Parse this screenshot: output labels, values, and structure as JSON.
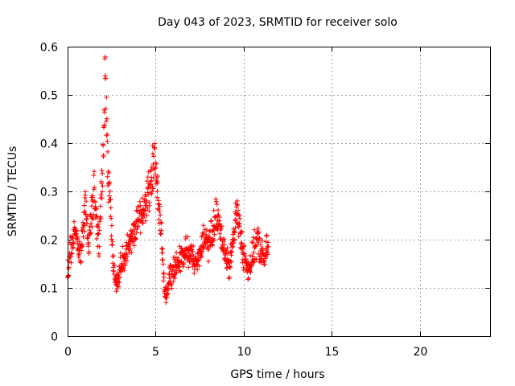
{
  "chart_data": {
    "type": "scatter",
    "title": "Day 043 of 2023, SRMTID for receiver solo",
    "xlabel": "GPS time / hours",
    "ylabel": "SRMTID / TECUs",
    "xlim": [
      0,
      24
    ],
    "ylim": [
      0,
      0.6
    ],
    "x_ticks": [
      0,
      5,
      10,
      15,
      20
    ],
    "x_tick_labels": [
      "0",
      "5",
      "10",
      "15",
      "20"
    ],
    "y_ticks": [
      0,
      0.1,
      0.2,
      0.3,
      0.4,
      0.5,
      0.6
    ],
    "y_tick_labels": [
      "0",
      "0.1",
      "0.2",
      "0.3",
      "0.4",
      "0.5",
      "0.6"
    ],
    "grid": true,
    "marker": "plus",
    "series": [
      {
        "name": "SRMTID",
        "color": "#ff0000",
        "trend": [
          [
            0.0,
            0.13
          ],
          [
            0.1,
            0.16
          ],
          [
            0.2,
            0.18
          ],
          [
            0.35,
            0.2
          ],
          [
            0.5,
            0.21
          ],
          [
            0.6,
            0.19
          ],
          [
            0.75,
            0.17
          ],
          [
            0.9,
            0.23
          ],
          [
            1.0,
            0.28
          ],
          [
            1.1,
            0.22
          ],
          [
            1.2,
            0.18
          ],
          [
            1.3,
            0.22
          ],
          [
            1.4,
            0.27
          ],
          [
            1.5,
            0.31
          ],
          [
            1.6,
            0.25
          ],
          [
            1.7,
            0.22
          ],
          [
            1.8,
            0.2
          ],
          [
            1.9,
            0.28
          ],
          [
            2.0,
            0.37
          ],
          [
            2.1,
            0.48
          ],
          [
            2.15,
            0.55
          ],
          [
            2.2,
            0.47
          ],
          [
            2.3,
            0.35
          ],
          [
            2.4,
            0.28
          ],
          [
            2.5,
            0.22
          ],
          [
            2.6,
            0.15
          ],
          [
            2.7,
            0.13
          ],
          [
            2.8,
            0.11
          ],
          [
            2.9,
            0.12
          ],
          [
            3.0,
            0.14
          ],
          [
            3.2,
            0.16
          ],
          [
            3.4,
            0.18
          ],
          [
            3.6,
            0.2
          ],
          [
            3.8,
            0.22
          ],
          [
            4.0,
            0.24
          ],
          [
            4.2,
            0.25
          ],
          [
            4.4,
            0.27
          ],
          [
            4.6,
            0.3
          ],
          [
            4.8,
            0.33
          ],
          [
            4.95,
            0.37
          ],
          [
            5.05,
            0.33
          ],
          [
            5.2,
            0.27
          ],
          [
            5.3,
            0.22
          ],
          [
            5.4,
            0.16
          ],
          [
            5.5,
            0.1
          ],
          [
            5.6,
            0.08
          ],
          [
            5.7,
            0.1
          ],
          [
            5.8,
            0.12
          ],
          [
            6.0,
            0.13
          ],
          [
            6.2,
            0.15
          ],
          [
            6.4,
            0.16
          ],
          [
            6.6,
            0.17
          ],
          [
            6.8,
            0.18
          ],
          [
            7.0,
            0.17
          ],
          [
            7.2,
            0.15
          ],
          [
            7.4,
            0.16
          ],
          [
            7.6,
            0.18
          ],
          [
            7.8,
            0.2
          ],
          [
            8.0,
            0.19
          ],
          [
            8.2,
            0.21
          ],
          [
            8.4,
            0.24
          ],
          [
            8.5,
            0.26
          ],
          [
            8.6,
            0.24
          ],
          [
            8.8,
            0.2
          ],
          [
            9.0,
            0.16
          ],
          [
            9.2,
            0.14
          ],
          [
            9.3,
            0.17
          ],
          [
            9.5,
            0.23
          ],
          [
            9.6,
            0.26
          ],
          [
            9.7,
            0.25
          ],
          [
            9.8,
            0.21
          ],
          [
            10.0,
            0.17
          ],
          [
            10.2,
            0.14
          ],
          [
            10.4,
            0.15
          ],
          [
            10.6,
            0.18
          ],
          [
            10.8,
            0.2
          ],
          [
            11.0,
            0.17
          ],
          [
            11.2,
            0.16
          ],
          [
            11.4,
            0.19
          ]
        ]
      }
    ]
  }
}
